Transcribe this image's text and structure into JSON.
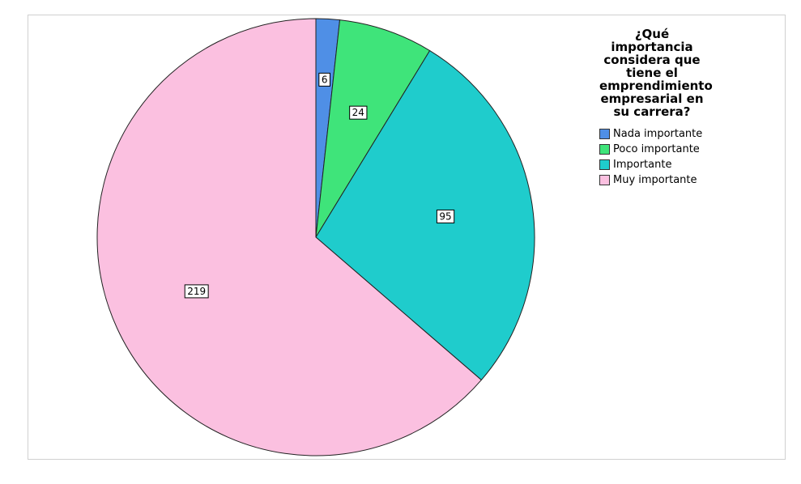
{
  "chart_data": {
    "type": "pie",
    "legend_title": "¿Qué importancia considera que tiene el emprendimiento empresarial en su carrera?",
    "categories": [
      "Nada importante",
      "Poco importante",
      "Importante",
      "Muy importante"
    ],
    "values": [
      6,
      24,
      95,
      219
    ],
    "colors": [
      "#4f8fe6",
      "#3fe47a",
      "#1fcccc",
      "#fbc0e0"
    ],
    "legend_position": "top-right"
  }
}
